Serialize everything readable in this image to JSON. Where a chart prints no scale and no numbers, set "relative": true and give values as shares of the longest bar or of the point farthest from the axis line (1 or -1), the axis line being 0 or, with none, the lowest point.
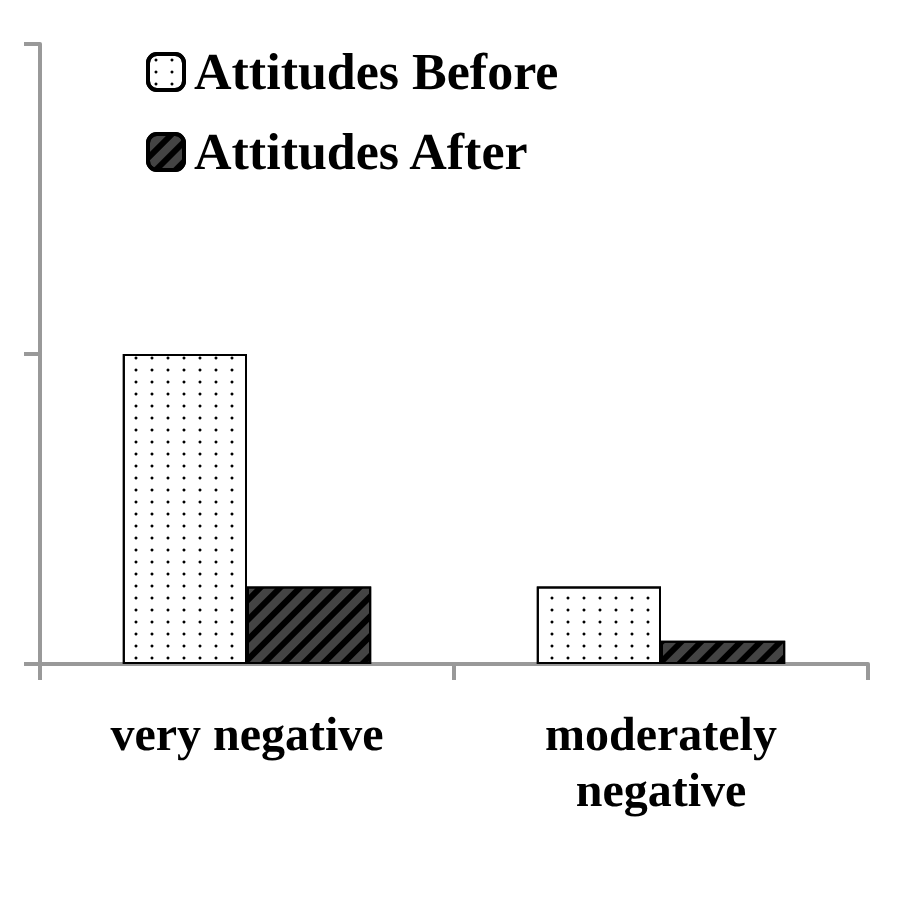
{
  "chart_data": {
    "type": "bar",
    "relative": true,
    "categories": [
      "very negative",
      "moderately negative"
    ],
    "series": [
      {
        "name": "Attitudes Before",
        "color": "#ffffff",
        "values": [
          1,
          0.25
        ]
      },
      {
        "name": "Attitudes After",
        "color": "#444444",
        "values": [
          0.25,
          0.075
        ]
      }
    ],
    "legend": "top left"
  }
}
